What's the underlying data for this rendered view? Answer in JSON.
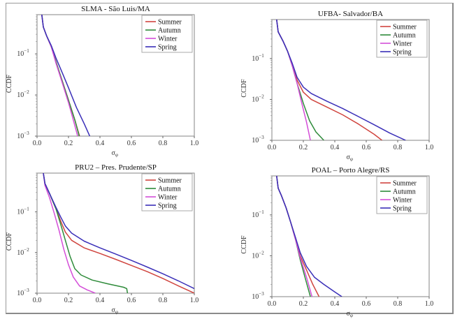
{
  "chart_data": [
    {
      "type": "line",
      "title": "SLMA  - São Luis/MA",
      "xlabel": "σφ",
      "ylabel": "CCDF",
      "xscale": "linear",
      "yscale": "log",
      "xlim": [
        0.0,
        1.0
      ],
      "ylim": [
        0.001,
        0.9
      ],
      "xticks": [
        "0.0",
        "0.2",
        "0.4",
        "0.6",
        "0.8",
        "1.0"
      ],
      "yticks": [
        "10^-1",
        "10^-2",
        "10^-3"
      ],
      "legend": "top-right",
      "grid": false,
      "series": [
        {
          "name": "Summer",
          "color": "#d0453f",
          "x": [
            0.03,
            0.04,
            0.06,
            0.09,
            0.12,
            0.16,
            0.2,
            0.24,
            0.27
          ],
          "y": [
            0.9,
            0.45,
            0.28,
            0.15,
            0.065,
            0.022,
            0.0075,
            0.0025,
            0.001
          ]
        },
        {
          "name": "Autumn",
          "color": "#2e8b3a",
          "x": [
            0.03,
            0.04,
            0.06,
            0.09,
            0.12,
            0.16,
            0.2,
            0.24,
            0.268
          ],
          "y": [
            0.9,
            0.45,
            0.28,
            0.15,
            0.065,
            0.022,
            0.0075,
            0.0025,
            0.001
          ]
        },
        {
          "name": "Winter",
          "color": "#d44ed8",
          "x": [
            0.03,
            0.04,
            0.06,
            0.09,
            0.12,
            0.16,
            0.2,
            0.23,
            0.258
          ],
          "y": [
            0.9,
            0.45,
            0.28,
            0.15,
            0.06,
            0.02,
            0.0065,
            0.0025,
            0.001
          ]
        },
        {
          "name": "Spring",
          "color": "#3a2fb8",
          "x": [
            0.03,
            0.04,
            0.06,
            0.09,
            0.12,
            0.16,
            0.2,
            0.25,
            0.3,
            0.335
          ],
          "y": [
            0.9,
            0.45,
            0.28,
            0.16,
            0.08,
            0.035,
            0.015,
            0.005,
            0.002,
            0.001
          ]
        }
      ]
    },
    {
      "type": "line",
      "title": "UFBA- Salvador/BA",
      "xlabel": "σφ",
      "ylabel": "CCDF",
      "xscale": "linear",
      "yscale": "log",
      "xlim": [
        0.0,
        1.0
      ],
      "ylim": [
        0.001,
        0.9
      ],
      "xticks": [
        "0.0",
        "0.2",
        "0.4",
        "0.6",
        "0.8",
        "1.0"
      ],
      "yticks": [
        "10^-1",
        "10^-2",
        "10^-3"
      ],
      "legend": "top-right",
      "grid": false,
      "series": [
        {
          "name": "Summer",
          "color": "#d0453f",
          "x": [
            0.03,
            0.04,
            0.07,
            0.1,
            0.13,
            0.16,
            0.2,
            0.25,
            0.35,
            0.45,
            0.55,
            0.65,
            0.7
          ],
          "y": [
            0.9,
            0.45,
            0.27,
            0.15,
            0.07,
            0.03,
            0.015,
            0.01,
            0.0065,
            0.0042,
            0.0025,
            0.0014,
            0.001
          ]
        },
        {
          "name": "Autumn",
          "color": "#2e8b3a",
          "x": [
            0.03,
            0.04,
            0.07,
            0.1,
            0.13,
            0.16,
            0.2,
            0.24,
            0.28,
            0.33
          ],
          "y": [
            0.9,
            0.45,
            0.27,
            0.15,
            0.065,
            0.025,
            0.008,
            0.003,
            0.0016,
            0.001
          ]
        },
        {
          "name": "Winter",
          "color": "#d44ed8",
          "x": [
            0.03,
            0.04,
            0.07,
            0.1,
            0.13,
            0.16,
            0.19,
            0.22,
            0.245
          ],
          "y": [
            0.9,
            0.45,
            0.27,
            0.15,
            0.065,
            0.025,
            0.008,
            0.0028,
            0.001
          ]
        },
        {
          "name": "Spring",
          "color": "#3a2fb8",
          "x": [
            0.03,
            0.04,
            0.07,
            0.1,
            0.13,
            0.16,
            0.2,
            0.25,
            0.35,
            0.45,
            0.55,
            0.65,
            0.75,
            0.85
          ],
          "y": [
            0.9,
            0.45,
            0.27,
            0.15,
            0.075,
            0.035,
            0.02,
            0.014,
            0.009,
            0.006,
            0.0038,
            0.0024,
            0.0015,
            0.001
          ]
        }
      ]
    },
    {
      "type": "line",
      "title": "PRU2 – Pres. Prudente/SP",
      "xlabel": "σφ",
      "ylabel": "CCDF",
      "xscale": "linear",
      "yscale": "log",
      "xlim": [
        0.0,
        1.0
      ],
      "ylim": [
        0.001,
        0.9
      ],
      "xticks": [
        "0.0",
        "0.2",
        "0.4",
        "0.6",
        "0.8",
        "1.0"
      ],
      "yticks": [
        "10^-1",
        "10^-2",
        "10^-3"
      ],
      "legend": "top-right",
      "grid": false,
      "series": [
        {
          "name": "Summer",
          "color": "#d0453f",
          "x": [
            0.04,
            0.05,
            0.08,
            0.12,
            0.15,
            0.18,
            0.22,
            0.3,
            0.4,
            0.5,
            0.6,
            0.7,
            0.8,
            0.9,
            1.0
          ],
          "y": [
            0.9,
            0.5,
            0.28,
            0.12,
            0.06,
            0.032,
            0.02,
            0.013,
            0.0095,
            0.0068,
            0.0048,
            0.0034,
            0.0023,
            0.0015,
            0.001
          ]
        },
        {
          "name": "Autumn",
          "color": "#2e8b3a",
          "x": [
            0.04,
            0.05,
            0.08,
            0.12,
            0.15,
            0.18,
            0.21,
            0.24,
            0.28,
            0.35,
            0.45,
            0.55,
            0.57,
            0.575
          ],
          "y": [
            0.9,
            0.5,
            0.28,
            0.12,
            0.05,
            0.02,
            0.008,
            0.004,
            0.0028,
            0.0021,
            0.0017,
            0.0014,
            0.0013,
            0.001
          ]
        },
        {
          "name": "Winter",
          "color": "#d44ed8",
          "x": [
            0.04,
            0.05,
            0.08,
            0.11,
            0.14,
            0.17,
            0.2,
            0.23,
            0.27,
            0.32,
            0.37
          ],
          "y": [
            0.9,
            0.45,
            0.22,
            0.09,
            0.035,
            0.012,
            0.005,
            0.0025,
            0.0015,
            0.0012,
            0.001
          ]
        },
        {
          "name": "Spring",
          "color": "#3a2fb8",
          "x": [
            0.04,
            0.05,
            0.08,
            0.12,
            0.15,
            0.18,
            0.22,
            0.3,
            0.4,
            0.5,
            0.6,
            0.7,
            0.8,
            0.9,
            1.0
          ],
          "y": [
            0.9,
            0.5,
            0.28,
            0.13,
            0.075,
            0.045,
            0.03,
            0.019,
            0.013,
            0.0092,
            0.0064,
            0.0044,
            0.003,
            0.002,
            0.0013
          ]
        }
      ]
    },
    {
      "type": "line",
      "title": "POAL – Porto Alegre/RS",
      "xlabel": "σφ",
      "ylabel": "CCDF",
      "xscale": "linear",
      "yscale": "log",
      "xlim": [
        0.0,
        1.0
      ],
      "ylim": [
        0.001,
        0.9
      ],
      "xticks": [
        "0.0",
        "0.2",
        "0.4",
        "0.6",
        "0.8",
        "1.0"
      ],
      "yticks": [
        "10^-1",
        "10^-2",
        "10^-3"
      ],
      "legend": "top-right",
      "grid": false,
      "series": [
        {
          "name": "Summer",
          "color": "#d0453f",
          "x": [
            0.03,
            0.04,
            0.06,
            0.09,
            0.12,
            0.15,
            0.18,
            0.22,
            0.26,
            0.3
          ],
          "y": [
            0.9,
            0.45,
            0.3,
            0.15,
            0.065,
            0.025,
            0.01,
            0.0045,
            0.002,
            0.001
          ]
        },
        {
          "name": "Autumn",
          "color": "#2e8b3a",
          "x": [
            0.03,
            0.04,
            0.06,
            0.09,
            0.12,
            0.15,
            0.18,
            0.21,
            0.245
          ],
          "y": [
            0.9,
            0.45,
            0.3,
            0.15,
            0.065,
            0.025,
            0.008,
            0.003,
            0.001
          ]
        },
        {
          "name": "Winter",
          "color": "#d44ed8",
          "x": [
            0.03,
            0.04,
            0.06,
            0.09,
            0.12,
            0.15,
            0.18,
            0.22,
            0.255
          ],
          "y": [
            0.9,
            0.45,
            0.3,
            0.15,
            0.065,
            0.025,
            0.009,
            0.003,
            0.001
          ]
        },
        {
          "name": "Spring",
          "color": "#3a2fb8",
          "x": [
            0.03,
            0.04,
            0.06,
            0.09,
            0.12,
            0.15,
            0.18,
            0.22,
            0.27,
            0.33,
            0.4,
            0.445
          ],
          "y": [
            0.9,
            0.45,
            0.3,
            0.15,
            0.065,
            0.028,
            0.012,
            0.0055,
            0.003,
            0.002,
            0.0013,
            0.001
          ]
        }
      ]
    }
  ]
}
